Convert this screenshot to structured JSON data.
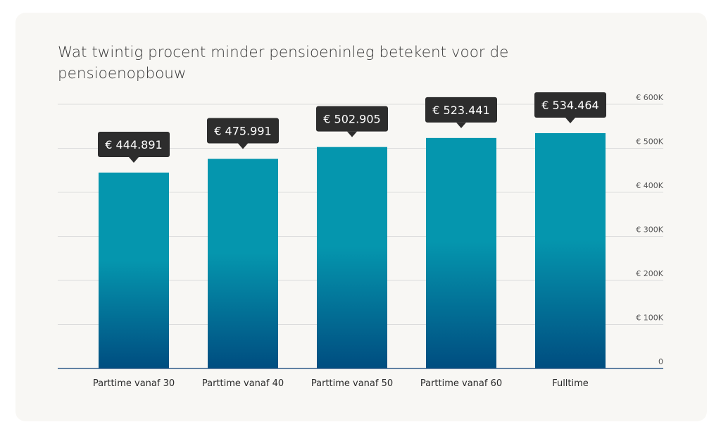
{
  "chart_data": {
    "type": "bar",
    "title": "Wat twintig procent minder pensioeninleg betekent voor de pensioenopbouw",
    "categories": [
      "Parttime vanaf 30",
      "Parttime vanaf 40",
      "Parttime vanaf 50",
      "Parttime vanaf 60",
      "Fulltime"
    ],
    "values": [
      444891,
      475991,
      502905,
      523441,
      534464
    ],
    "data_labels": [
      "€ 444.891",
      "€ 475.991",
      "€ 502.905",
      "€ 523.441",
      "€ 534.464"
    ],
    "ylim": [
      0,
      600000
    ],
    "yticks": [
      0,
      100000,
      200000,
      300000,
      400000,
      500000,
      600000
    ],
    "ytick_labels": [
      "0",
      "€ 100K",
      "€ 200K",
      "€ 300K",
      "€ 400K",
      "€ 500K",
      "€ 600K"
    ],
    "y_axis_side": "right",
    "grid": true,
    "colors": {
      "bar_top": "#0596ae",
      "bar_bottom": "#004d80",
      "label_bg": "#2d2d2d",
      "axis": "#2f5c8a",
      "grid": "#dcdcdc"
    }
  }
}
